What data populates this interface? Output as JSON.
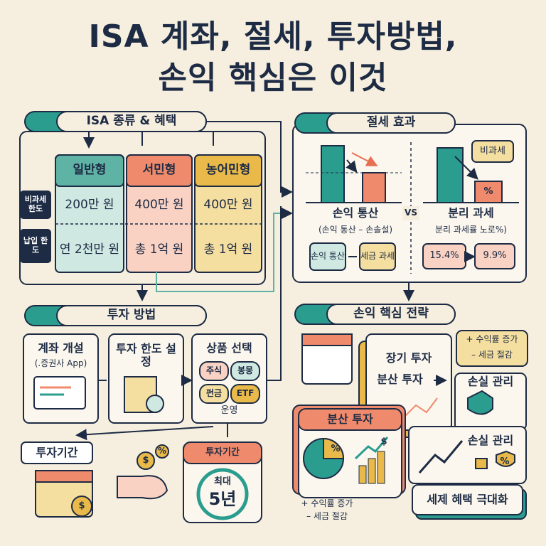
{
  "title": [
    "ISA 계좌, 절세, 투자방법,",
    "손익 핵심은 이것"
  ],
  "isa_types": {
    "heading": "ISA 종류 & 혜택",
    "columns": [
      "일반형",
      "서민형",
      "농어민형"
    ],
    "row_labels": [
      "비과세 한도",
      "납입 한도"
    ],
    "rows": [
      [
        "200만 원",
        "400만 원",
        "400만 원"
      ],
      [
        "연 2천만 원",
        "총 1억 원",
        "총 1억 원"
      ]
    ]
  },
  "tax_effect": {
    "heading": "절세 효과",
    "left": {
      "title": "손익 통산",
      "subtitle": "(손익 통산 – 손솔설)",
      "boxes": [
        "손익 통산",
        "세금 과세"
      ]
    },
    "vs": "VS",
    "right": {
      "title": "분리 과세",
      "subtitle": "분리 과세률 노로%)",
      "bubble": "비과세",
      "badge": "%",
      "from": "15.4%",
      "to": "9.9%"
    }
  },
  "investment": {
    "heading": "투자 방법",
    "steps": [
      {
        "title": "계좌 개설",
        "note": "(.증권사 App)"
      },
      {
        "title": "투자 한도 설정"
      },
      {
        "title": "상품 선택",
        "chips": [
          "주식",
          "봉몽",
          "펀금",
          "ETF"
        ],
        "note": "운영"
      }
    ],
    "period_label": "투자기간",
    "period_card": {
      "title": "투자기간",
      "max": "최대",
      "years": "5년"
    },
    "icons": [
      "$",
      "%",
      "$"
    ]
  },
  "strategy": {
    "heading": "손익 핵심 전략",
    "items": [
      "장기 투자",
      "분산 투자"
    ],
    "bubble": [
      "+ 수익률 증가",
      "– 세금 절감"
    ],
    "loss": "손실 관리",
    "diversify_card": "분산 투자",
    "loss_card": "손실 관리",
    "max_card": "세제 혜택 극대화",
    "notes": [
      "+ 수익률 증가",
      "– 세금 절감"
    ],
    "icons": [
      "%",
      "$",
      "%"
    ]
  }
}
